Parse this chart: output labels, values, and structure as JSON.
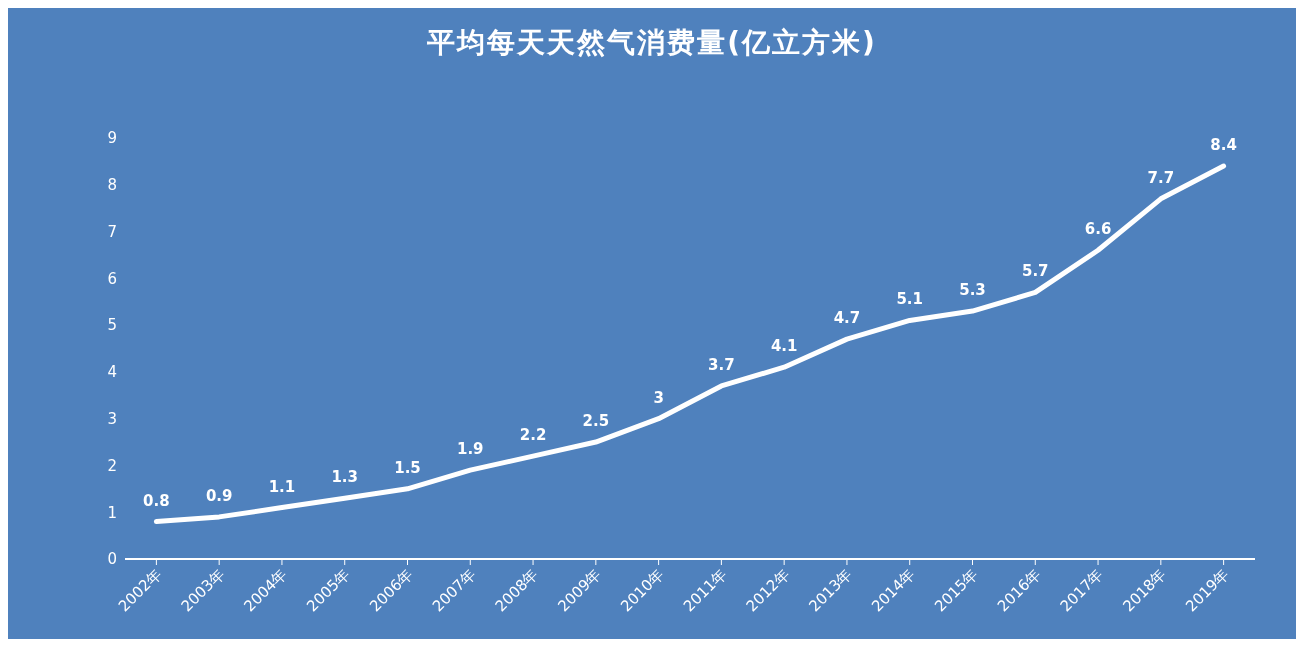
{
  "chart_data": {
    "type": "line",
    "title": "平均每天天然气消费量(亿立方米)",
    "categories": [
      "2002年",
      "2003年",
      "2004年",
      "2005年",
      "2006年",
      "2007年",
      "2008年",
      "2009年",
      "2010年",
      "2011年",
      "2012年",
      "2013年",
      "2014年",
      "2015年",
      "2016年",
      "2017年",
      "2018年",
      "2019年"
    ],
    "series": [
      {
        "color": "#ffffff",
        "values": [
          0.8,
          0.9,
          1.1,
          1.3,
          1.5,
          1.9,
          2.2,
          2.5,
          3,
          3.7,
          4.1,
          4.7,
          5.1,
          5.3,
          5.7,
          6.6,
          7.7,
          8.4
        ]
      }
    ],
    "ylim": [
      0,
      9
    ],
    "yticks": [
      0,
      1,
      2,
      3,
      4,
      5,
      6,
      7,
      8,
      9
    ],
    "grid": false,
    "legend": false,
    "marker": "none",
    "line_style": "solid",
    "data_labels": true
  }
}
